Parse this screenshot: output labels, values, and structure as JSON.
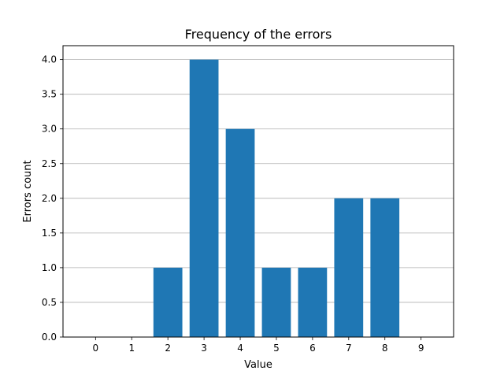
{
  "chart_data": {
    "type": "bar",
    "title": "Frequency of the errors",
    "xlabel": "Value",
    "ylabel": "Errors count",
    "categories": [
      "0",
      "1",
      "2",
      "3",
      "4",
      "5",
      "6",
      "7",
      "8",
      "9"
    ],
    "values": [
      0,
      0,
      1,
      4,
      3,
      1,
      1,
      2,
      2,
      0
    ],
    "ylim": [
      0,
      4.2
    ],
    "yticks": [
      0.0,
      0.5,
      1.0,
      1.5,
      2.0,
      2.5,
      3.0,
      3.5,
      4.0
    ],
    "ytick_labels": [
      "0.0",
      "0.5",
      "1.0",
      "1.5",
      "2.0",
      "2.5",
      "3.0",
      "3.5",
      "4.0"
    ],
    "grid": "horizontal",
    "bar_color": "#1f77b4"
  }
}
